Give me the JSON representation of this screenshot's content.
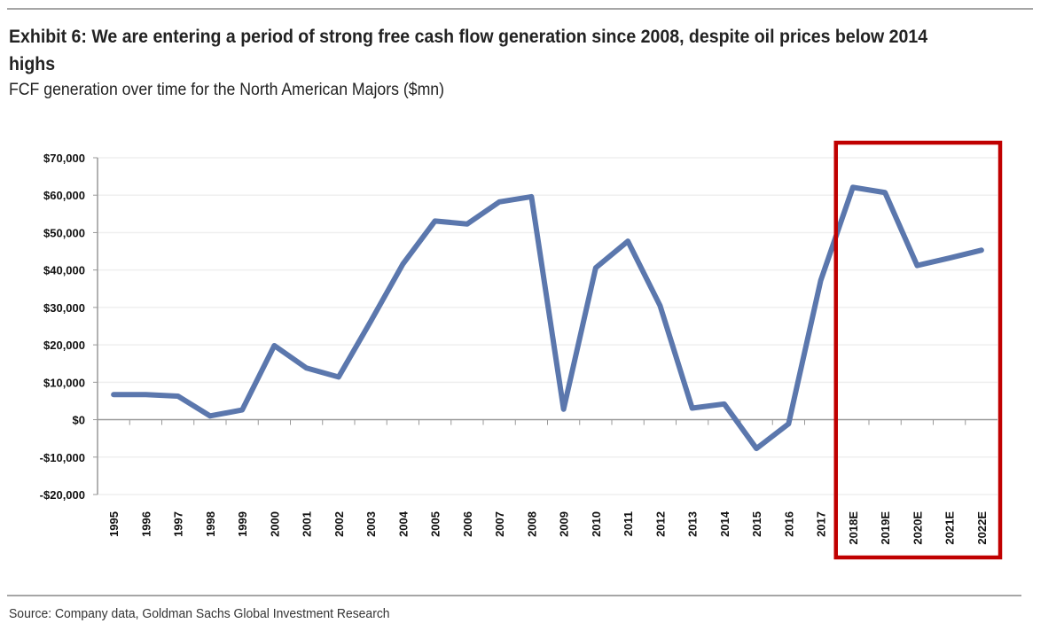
{
  "title": "Exhibit 6: We are entering a period of strong free cash flow generation since 2008, despite oil prices below 2014 highs",
  "subtitle": "FCF generation over time for the North American Majors ($mn)",
  "source": "Source: Company data, Goldman Sachs Global Investment Research",
  "colors": {
    "line": "#5b77ad",
    "highlight_box": "#c00000",
    "grid": "#efefef",
    "axis": "#999999"
  },
  "chart_data": {
    "type": "line",
    "title": "",
    "xlabel": "",
    "ylabel": "",
    "ylim": [
      -20000,
      70000
    ],
    "grid": true,
    "y_ticks": [
      70000,
      60000,
      50000,
      40000,
      30000,
      20000,
      10000,
      0,
      -10000,
      -20000
    ],
    "y_tick_labels": [
      "$70,000",
      "$60,000",
      "$50,000",
      "$40,000",
      "$30,000",
      "$20,000",
      "$10,000",
      "$0",
      "-$10,000",
      "-$20,000"
    ],
    "categories": [
      "1995",
      "1996",
      "1997",
      "1998",
      "1999",
      "2000",
      "2001",
      "2002",
      "2003",
      "2004",
      "2005",
      "2006",
      "2007",
      "2008",
      "2009",
      "2010",
      "2011",
      "2012",
      "2013",
      "2014",
      "2015",
      "2016",
      "2017",
      "2018E",
      "2019E",
      "2020E",
      "2021E",
      "2022E"
    ],
    "series": [
      {
        "values": [
          6700,
          6700,
          6300,
          1000,
          2600,
          19800,
          13800,
          11400,
          26300,
          41600,
          53100,
          52300,
          58200,
          59600,
          2800,
          40600,
          47700,
          30500,
          3100,
          4200,
          -7700,
          -1100,
          37200,
          62100,
          60700,
          41200,
          43200,
          45300
        ]
      }
    ],
    "highlight": {
      "categories": [
        "2018E",
        "2019E",
        "2020E",
        "2021E",
        "2022E"
      ]
    }
  }
}
